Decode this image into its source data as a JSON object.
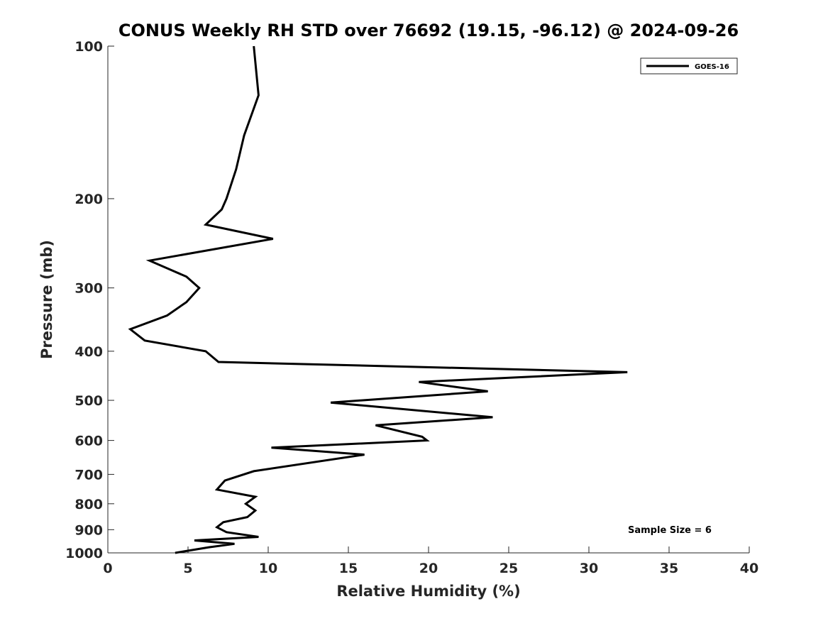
{
  "chart_data": {
    "type": "line",
    "title": "CONUS Weekly RH STD over 76692 (19.15, -96.12) @ 2024-09-26",
    "xlabel": "Relative Humidity (%)",
    "ylabel": "Pressure (mb)",
    "xlim": [
      0,
      40
    ],
    "ylim": [
      100,
      1000
    ],
    "yscale": "log",
    "y_reversed": true,
    "xticks": [
      0,
      5,
      10,
      15,
      20,
      25,
      30,
      35,
      40
    ],
    "yticks": [
      100,
      200,
      300,
      400,
      500,
      600,
      700,
      800,
      900,
      1000
    ],
    "grid": false,
    "legend_position": "top-right",
    "annotation": "Sample Size = 6",
    "color": "#000000",
    "series": [
      {
        "name": "GOES-16",
        "points": [
          [
            9.1,
            100
          ],
          [
            9.4,
            125
          ],
          [
            8.5,
            150
          ],
          [
            8.0,
            175
          ],
          [
            7.4,
            200
          ],
          [
            7.1,
            210
          ],
          [
            6.1,
            225
          ],
          [
            10.3,
            240
          ],
          [
            2.6,
            265
          ],
          [
            4.9,
            285
          ],
          [
            5.7,
            300
          ],
          [
            4.9,
            320
          ],
          [
            3.7,
            340
          ],
          [
            1.4,
            362
          ],
          [
            2.3,
            381
          ],
          [
            6.1,
            400
          ],
          [
            6.9,
            420
          ],
          [
            32.4,
            440
          ],
          [
            19.4,
            460
          ],
          [
            23.7,
            480
          ],
          [
            13.9,
            505
          ],
          [
            24.0,
            540
          ],
          [
            16.7,
            560
          ],
          [
            19.6,
            590
          ],
          [
            19.9,
            600
          ],
          [
            10.2,
            620
          ],
          [
            16.0,
            640
          ],
          [
            9.1,
            690
          ],
          [
            7.3,
            720
          ],
          [
            6.8,
            750
          ],
          [
            9.2,
            775
          ],
          [
            8.6,
            800
          ],
          [
            9.2,
            825
          ],
          [
            8.7,
            850
          ],
          [
            7.2,
            870
          ],
          [
            6.8,
            890
          ],
          [
            7.4,
            910
          ],
          [
            9.4,
            930
          ],
          [
            5.4,
            945
          ],
          [
            7.9,
            960
          ],
          [
            6.3,
            975
          ],
          [
            4.2,
            1000
          ]
        ]
      }
    ]
  }
}
